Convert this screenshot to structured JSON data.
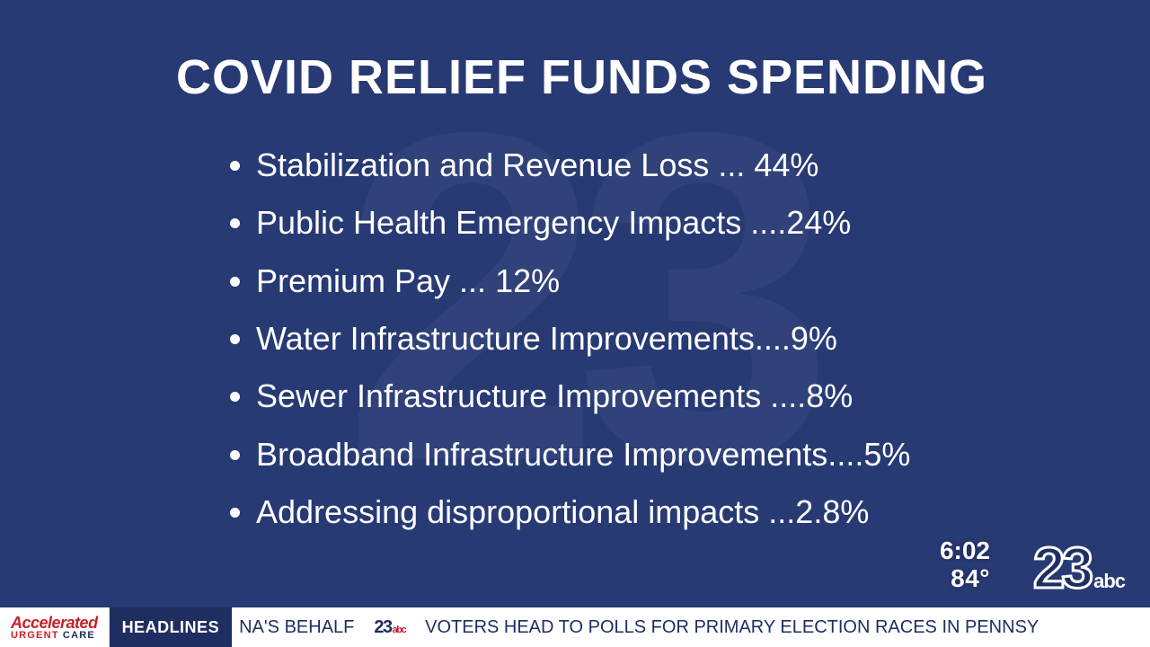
{
  "background_color": "#283a74",
  "text_color": "#ffffff",
  "watermark_text": "23",
  "title": "COVID RELIEF FUNDS SPENDING",
  "title_fontsize": 54,
  "title_weight": 800,
  "list_fontsize": 36,
  "items": [
    {
      "text": "Stabilization and Revenue Loss ...  44%"
    },
    {
      "text": "Public Health Emergency Impacts ....24%"
    },
    {
      "text": "Premium Pay ... 12%"
    },
    {
      "text": "Water Infrastructure Improvements....9%"
    },
    {
      "text": "Sewer Infrastructure Improvements ....8%"
    },
    {
      "text": "Broadband Infrastructure Improvements....5%"
    },
    {
      "text": "Addressing disproportional impacts ...2.8%"
    }
  ],
  "status": {
    "time": "6:02",
    "temperature": "84°"
  },
  "logo": {
    "number": "23",
    "network": "abc",
    "number_color": "#1f2e61",
    "stroke_color": "#ffffff",
    "network_color": "#ffffff"
  },
  "ticker": {
    "bar_bg": "#ffffff",
    "sponsor": {
      "line1": "Accelerated",
      "line2_a": "URGENT",
      "line2_b": "CARE",
      "line1_color": "#c8202b",
      "line2_a_color": "#c8202b",
      "line2_b_color": "#1f2e61"
    },
    "label": "HEADLINES",
    "label_bg": "#1f2e61",
    "label_color": "#ffffff",
    "sep_number": "23",
    "sep_network": "abc",
    "sep_num_color": "#1f2e61",
    "sep_net_color": "#c8202b",
    "stories": [
      "NA'S BEHALF",
      "VOTERS HEAD TO POLLS FOR PRIMARY ELECTION RACES IN PENNSY"
    ],
    "text_color": "#1f2e61"
  }
}
